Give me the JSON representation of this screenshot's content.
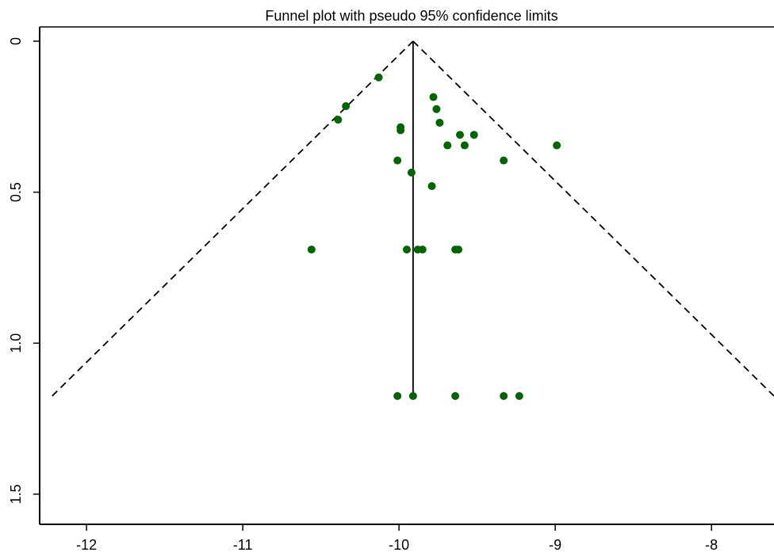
{
  "chart_data": {
    "type": "scatter",
    "title": "Funnel plot with pseudo 95% confidence limits",
    "xlabel": "",
    "ylabel": "",
    "xlim": [
      -12.3,
      -7.6
    ],
    "ylim": [
      1.55,
      0
    ],
    "y_axis_inverted": true,
    "xticks": [
      -12,
      -11,
      -10,
      -9,
      -8
    ],
    "xtick_labels": [
      "-12",
      "-11",
      "-10",
      "-9",
      "-8"
    ],
    "yticks": [
      0,
      0.5,
      1.0,
      1.5
    ],
    "ytick_labels": [
      "0",
      "0.5",
      "1.0",
      "1.5"
    ],
    "grid": false,
    "legend": "none",
    "point_color": "#006400",
    "funnel": {
      "apex": [
        -9.91,
        0
      ],
      "left_end": [
        -12.22,
        1.175
      ],
      "right_end": [
        -7.6,
        1.175
      ],
      "style": "dashed"
    },
    "center_line": {
      "x": -9.91,
      "y": [
        0,
        1.175
      ],
      "style": "solid"
    },
    "points": [
      {
        "x": -10.13,
        "y": 0.12
      },
      {
        "x": -10.34,
        "y": 0.215
      },
      {
        "x": -10.39,
        "y": 0.26
      },
      {
        "x": -9.78,
        "y": 0.185
      },
      {
        "x": -9.76,
        "y": 0.225
      },
      {
        "x": -9.74,
        "y": 0.27
      },
      {
        "x": -9.99,
        "y": 0.285
      },
      {
        "x": -9.99,
        "y": 0.295
      },
      {
        "x": -9.61,
        "y": 0.31
      },
      {
        "x": -9.52,
        "y": 0.31
      },
      {
        "x": -9.69,
        "y": 0.345
      },
      {
        "x": -9.58,
        "y": 0.345
      },
      {
        "x": -8.99,
        "y": 0.345
      },
      {
        "x": -10.01,
        "y": 0.395
      },
      {
        "x": -9.33,
        "y": 0.395
      },
      {
        "x": -9.92,
        "y": 0.435
      },
      {
        "x": -9.79,
        "y": 0.48
      },
      {
        "x": -10.56,
        "y": 0.69
      },
      {
        "x": -9.95,
        "y": 0.69
      },
      {
        "x": -9.88,
        "y": 0.69
      },
      {
        "x": -9.85,
        "y": 0.69
      },
      {
        "x": -9.64,
        "y": 0.69
      },
      {
        "x": -9.62,
        "y": 0.69
      },
      {
        "x": -10.01,
        "y": 1.175
      },
      {
        "x": -9.91,
        "y": 1.175
      },
      {
        "x": -9.64,
        "y": 1.175
      },
      {
        "x": -9.33,
        "y": 1.175
      },
      {
        "x": -9.23,
        "y": 1.175
      }
    ]
  }
}
